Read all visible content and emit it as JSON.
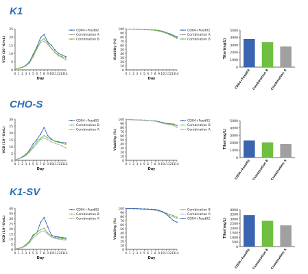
{
  "rows": [
    {
      "title": "K1",
      "vcd": {
        "type": "line",
        "ylabel": "VCD (10^6/mL)",
        "xlabel": "Day",
        "ylim": [
          0,
          25
        ],
        "yticks": [
          0,
          5,
          10,
          15,
          20,
          25
        ],
        "x": [
          0,
          1,
          2,
          3,
          4,
          5,
          6,
          7,
          8,
          9,
          10,
          11,
          12,
          13,
          14
        ],
        "legend": [
          "CD04+Feed02",
          "Combination A",
          "Combination B"
        ],
        "series": [
          {
            "name": "CD04+Feed02",
            "color": "#3a63b0",
            "values": [
              0.5,
              1.0,
              1.6,
              2.8,
              5.0,
              9.5,
              14.0,
              19.5,
              21.5,
              17.0,
              15.0,
              12.0,
              10.0,
              9.0,
              8.0
            ]
          },
          {
            "name": "Combination A",
            "color": "#b0b0b0",
            "values": [
              0.5,
              0.9,
              1.4,
              2.4,
              4.2,
              8.0,
              12.5,
              16.5,
              17.5,
              15.5,
              13.0,
              10.5,
              8.5,
              7.5,
              6.0
            ]
          },
          {
            "name": "Combination B",
            "color": "#6fbf40",
            "values": [
              0.5,
              1.0,
              1.5,
              2.5,
              4.5,
              8.5,
              13.0,
              17.5,
              19.0,
              16.5,
              13.0,
              10.5,
              9.0,
              8.0,
              7.0
            ]
          }
        ]
      },
      "viability": {
        "type": "line",
        "ylabel": "Viability (%)",
        "xlabel": "Day",
        "ylim": [
          0,
          100
        ],
        "yticks": [
          0,
          10,
          20,
          30,
          40,
          50,
          60,
          70,
          80,
          90,
          100
        ],
        "x": [
          0,
          1,
          2,
          3,
          4,
          5,
          6,
          7,
          8,
          9,
          10,
          11,
          12,
          13,
          14
        ],
        "legend": [
          "CD04+Feed02",
          "Combination A",
          "Combination B"
        ],
        "series": [
          {
            "name": "CD04+Feed02",
            "color": "#3a63b0",
            "values": [
              99,
              99,
              99,
              99,
              98.5,
              98,
              98,
              97.5,
              97,
              96,
              94,
              91,
              88,
              84,
              80
            ]
          },
          {
            "name": "Combination A",
            "color": "#b0b0b0",
            "values": [
              99,
              99,
              99,
              98.5,
              98,
              98,
              97.5,
              97,
              96,
              94,
              92,
              89,
              85,
              81,
              76
            ]
          },
          {
            "name": "Combination B",
            "color": "#6fbf40",
            "values": [
              99,
              99,
              99,
              99,
              98.5,
              98,
              98,
              97,
              96.5,
              95,
              93,
              90,
              86,
              82,
              78
            ]
          }
        ]
      },
      "titer": {
        "type": "bar",
        "ylabel": "Titer(mg/L)",
        "ylim": [
          0,
          5000
        ],
        "yticks": [
          0,
          1000,
          2000,
          3000,
          4000,
          5000
        ],
        "categories": [
          "CD04+Feed02",
          "Combination B",
          "Combination A"
        ],
        "values": [
          3800,
          3400,
          2800
        ],
        "colors": [
          "#3a63b0",
          "#6fbf40",
          "#a0a0a0"
        ]
      }
    },
    {
      "title": "CHO-S",
      "vcd": {
        "type": "line",
        "ylabel": "VCD (10^6/mL)",
        "xlabel": "Day",
        "ylim": [
          0,
          30
        ],
        "yticks": [
          0,
          5,
          10,
          15,
          20,
          25,
          30
        ],
        "x": [
          0,
          1,
          2,
          3,
          4,
          5,
          6,
          7,
          8,
          9,
          10,
          11,
          12,
          13,
          14
        ],
        "legend": [
          "CD04+Feed02",
          "Combination B",
          "Combination A"
        ],
        "series": [
          {
            "name": "CD04+Feed02",
            "color": "#3a63b0",
            "values": [
              0.5,
              1.2,
              2.5,
              4.5,
              7.5,
              12.0,
              15.0,
              19.0,
              24.0,
              18.0,
              15.5,
              14.0,
              13.5,
              13.0,
              12.5
            ]
          },
          {
            "name": "Combination B",
            "color": "#6fbf40",
            "values": [
              0.5,
              1.1,
              2.2,
              4.0,
              6.5,
              10.0,
              13.5,
              16.0,
              18.0,
              16.5,
              15.0,
              14.0,
              13.0,
              12.5,
              11.5
            ]
          },
          {
            "name": "Combination A",
            "color": "#b0b0b0",
            "values": [
              0.5,
              1.0,
              2.0,
              3.5,
              6.0,
              9.0,
              12.0,
              15.0,
              16.5,
              15.0,
              13.5,
              12.5,
              11.5,
              10.5,
              9.0
            ]
          }
        ]
      },
      "viability": {
        "type": "line",
        "ylabel": "Viability (%)",
        "xlabel": "Day",
        "ylim": [
          0,
          100
        ],
        "yticks": [
          0,
          10,
          20,
          30,
          40,
          50,
          60,
          70,
          80,
          90,
          100
        ],
        "x": [
          0,
          1,
          2,
          3,
          4,
          5,
          6,
          7,
          8,
          9,
          10,
          11,
          12,
          13,
          14
        ],
        "legend": [
          "CD04+Feed02",
          "Combination B",
          "Combination A"
        ],
        "series": [
          {
            "name": "CD04+Feed02",
            "color": "#3a63b0",
            "values": [
              99,
              99,
              98.5,
              98,
              98,
              97.5,
              97,
              96.5,
              96,
              94,
              92,
              90,
              89,
              88,
              85
            ]
          },
          {
            "name": "Combination B",
            "color": "#6fbf40",
            "values": [
              99,
              99,
              98.5,
              98,
              97.5,
              97,
              97,
              96.5,
              95.5,
              93,
              91,
              89,
              88,
              87,
              84
            ]
          },
          {
            "name": "Combination A",
            "color": "#b0b0b0",
            "values": [
              99,
              98.5,
              98,
              98,
              97.5,
              97,
              96.5,
              96,
              95,
              92.5,
              90,
              88,
              86,
              85,
              80
            ]
          }
        ]
      },
      "titer": {
        "type": "bar",
        "ylabel": "Titer(mg/L)",
        "ylim": [
          0,
          5000
        ],
        "yticks": [
          0,
          1000,
          2000,
          3000,
          4000,
          5000
        ],
        "categories": [
          "CD04+Feed02",
          "Combination B",
          "Combination A"
        ],
        "values": [
          2300,
          2050,
          1850
        ],
        "colors": [
          "#3a63b0",
          "#6fbf40",
          "#a0a0a0"
        ]
      }
    },
    {
      "title": "K1-SV",
      "vcd": {
        "type": "line",
        "ylabel": "VCD (10^6/mL)",
        "xlabel": "Day",
        "ylim": [
          0,
          40
        ],
        "yticks": [
          0,
          5,
          10,
          15,
          20,
          25,
          30,
          35,
          40
        ],
        "x": [
          0,
          1,
          2,
          3,
          4,
          5,
          6,
          7,
          8,
          9,
          10,
          11,
          12,
          13,
          14
        ],
        "legend": [
          "CD04+Feed02",
          "Combination B",
          "Combination A"
        ],
        "series": [
          {
            "name": "CD04+Feed02",
            "color": "#3a63b0",
            "values": [
              0.5,
              1.0,
              2.0,
              4.5,
              8.0,
              14.0,
              16.0,
              26.0,
              31.0,
              22.0,
              14.0,
              12.5,
              12.0,
              11.5,
              11.0
            ]
          },
          {
            "name": "Combination B",
            "color": "#6fbf40",
            "values": [
              0.5,
              1.0,
              1.8,
              4.0,
              7.5,
              13.0,
              16.5,
              19.0,
              20.5,
              16.0,
              12.5,
              11.5,
              11.0,
              10.5,
              10.0
            ]
          },
          {
            "name": "Combination A",
            "color": "#b0b0b0",
            "values": [
              0.5,
              0.9,
              1.6,
              3.5,
              6.5,
              11.0,
              14.0,
              17.0,
              18.0,
              15.0,
              12.0,
              10.5,
              10.0,
              9.5,
              9.0
            ]
          }
        ]
      },
      "viability": {
        "type": "line",
        "ylabel": "Viability (%)",
        "xlabel": "Day",
        "ylim": [
          0,
          100
        ],
        "yticks": [
          0,
          10,
          20,
          30,
          40,
          50,
          60,
          70,
          80,
          90,
          100
        ],
        "x": [
          0,
          1,
          2,
          3,
          4,
          5,
          6,
          7,
          8,
          9,
          10,
          11,
          12,
          13,
          14
        ],
        "legend": [
          "Combination B",
          "Combination A",
          "CD04+Feed02"
        ],
        "series": [
          {
            "name": "Combination B",
            "color": "#6fbf40",
            "values": [
              99,
              99,
              99,
              98.5,
              98,
              98,
              97.5,
              97,
              96,
              94,
              91,
              88,
              85,
              82,
              78
            ]
          },
          {
            "name": "Combination A",
            "color": "#b0b0b0",
            "values": [
              99,
              99,
              98.5,
              98.5,
              98,
              97.5,
              97,
              96,
              95,
              93,
              90,
              86,
              82,
              79,
              75
            ]
          },
          {
            "name": "CD04+Feed02",
            "color": "#3a63b0",
            "values": [
              99,
              99,
              99,
              99,
              98.5,
              98,
              98,
              97.5,
              97,
              95,
              92,
              86,
              78,
              70,
              66
            ]
          }
        ]
      },
      "titer": {
        "type": "bar",
        "ylabel": "Titer(mg/L)",
        "ylim": [
          0,
          4000
        ],
        "yticks": [
          0,
          500,
          1000,
          1500,
          2000,
          2500,
          3000,
          3500,
          4000
        ],
        "categories": [
          "CD04+Feed02",
          "Combination B",
          "Combination A"
        ],
        "values": [
          3400,
          2800,
          2300
        ],
        "colors": [
          "#3a63b0",
          "#6fbf40",
          "#a0a0a0"
        ]
      }
    }
  ]
}
